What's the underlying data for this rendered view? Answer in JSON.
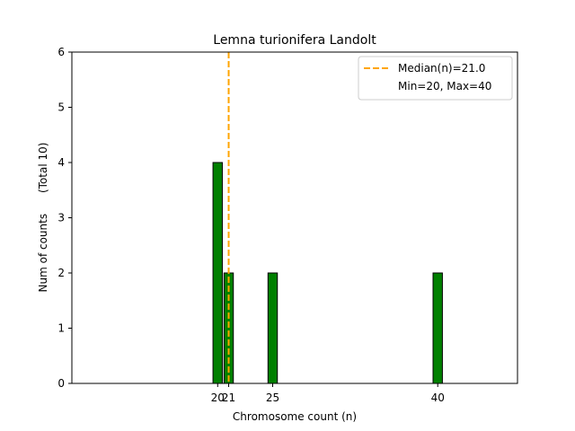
{
  "chart_data": {
    "type": "bar",
    "title": "Lemna turionifera Landolt",
    "xlabel": "Chromosome count (n)",
    "ylabel": "Num of counts      (Total 10)",
    "xlim": [
      6.75,
      47.25
    ],
    "ylim": [
      0,
      6
    ],
    "x_ticks": [
      20,
      21,
      25,
      40
    ],
    "y_ticks": [
      0,
      1,
      2,
      3,
      4,
      5,
      6
    ],
    "bin_width": 0.85,
    "bars": [
      {
        "x": 20,
        "count": 4
      },
      {
        "x": 21,
        "count": 2
      },
      {
        "x": 25,
        "count": 2
      },
      {
        "x": 40,
        "count": 2
      }
    ],
    "baseline_range": [
      20,
      44
    ],
    "median": 21.0,
    "legend": {
      "placement": "upper right",
      "entries": [
        "Median(n)=21.0",
        "Min=20, Max=40"
      ]
    },
    "colors": {
      "bar_fill": "#008000",
      "bar_edge": "#000000",
      "median_line": "#ffa500"
    }
  }
}
